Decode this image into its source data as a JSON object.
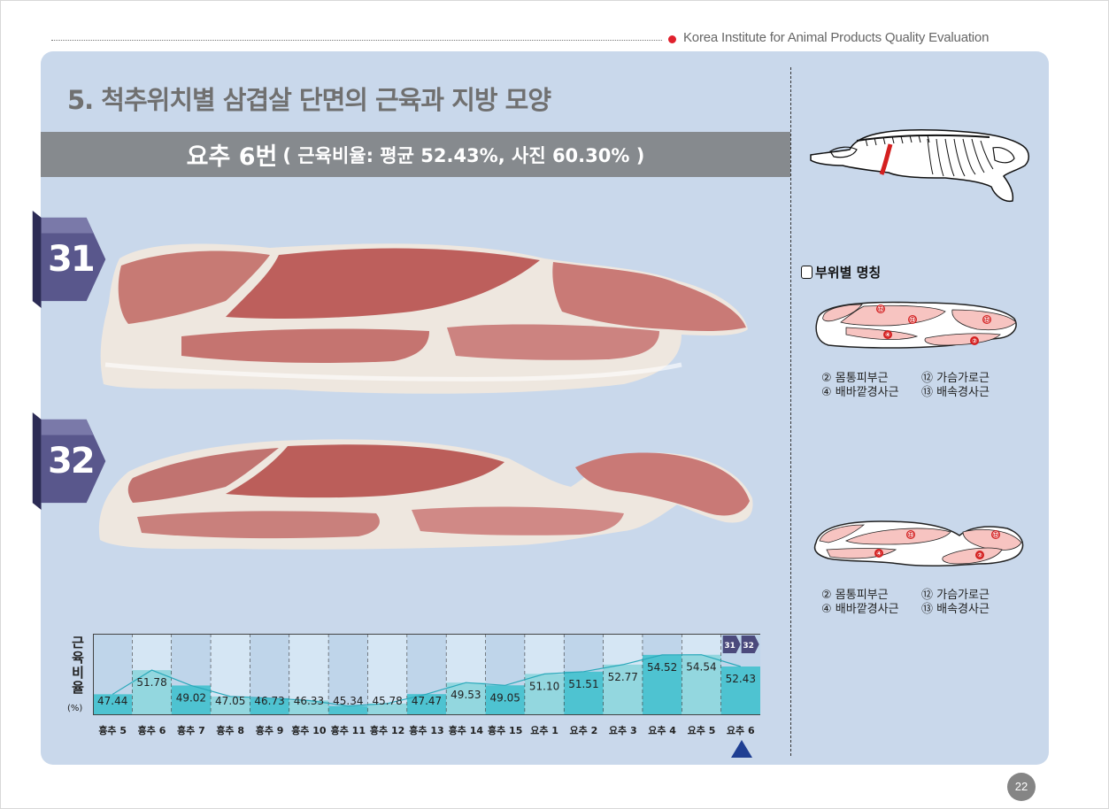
{
  "header": {
    "institute": "Korea Institute for Animal Products Quality Evaluation"
  },
  "section": {
    "title": "5. 척추위치별 삼겹살 단면의 근육과 지방 모양",
    "subtitle_main": "요추 6번",
    "subtitle_detail": "( 근육비율: 평균 52.43%, 사진 60.30% )"
  },
  "photos": [
    {
      "number": "31"
    },
    {
      "number": "32"
    }
  ],
  "chart_data": {
    "type": "area",
    "ylabel": "근육비율",
    "yunit": "(%)",
    "categories": [
      "흉추 5",
      "흉추 6",
      "흉추 7",
      "흉추 8",
      "흉추 9",
      "흉추 10",
      "흉추 11",
      "흉추 12",
      "흉추 13",
      "흉추 14",
      "흉추 15",
      "요추 1",
      "요추 2",
      "요추 3",
      "요추 4",
      "요추 5",
      "요추 6"
    ],
    "values": [
      47.44,
      51.78,
      49.02,
      47.05,
      46.73,
      46.33,
      45.34,
      45.78,
      47.47,
      49.53,
      49.05,
      51.1,
      51.51,
      52.77,
      54.52,
      54.54,
      52.43
    ],
    "value_labels": [
      "47.44",
      "51.78",
      "49.02",
      "47.05",
      "46.73",
      "46.33",
      "45.34",
      "45.78",
      "47.47",
      "49.53",
      "49.05",
      "51.10",
      "51.51",
      "52.77",
      "54.52",
      "54.54",
      "52.43"
    ],
    "highlighted_category": "요추 6",
    "section_tags": [
      "31",
      "32"
    ],
    "colors": {
      "fill_dark": "#4ec3d1",
      "fill_light": "#93d7df",
      "bg_dark": "#bfd5ea",
      "bg_light": "#d5e6f4",
      "marker": "#1f3f93"
    }
  },
  "legend": {
    "title": "부위별 명칭",
    "muscle_numbers": [
      "⑫",
      "⑬",
      "④",
      "⑫",
      "②"
    ],
    "muscle_numbers_2": [
      "⑬",
      "⑫",
      "④",
      "②"
    ],
    "items_1": [
      "② 몸통피부근",
      "⑫ 가슴가로근",
      "④ 배바깥경사근",
      "⑬ 배속경사근"
    ],
    "items_2": [
      "② 몸통피부근",
      "⑫ 가슴가로근",
      "④ 배바깥경사근",
      "⑬ 배속경사근"
    ]
  },
  "page": {
    "number": "22"
  }
}
